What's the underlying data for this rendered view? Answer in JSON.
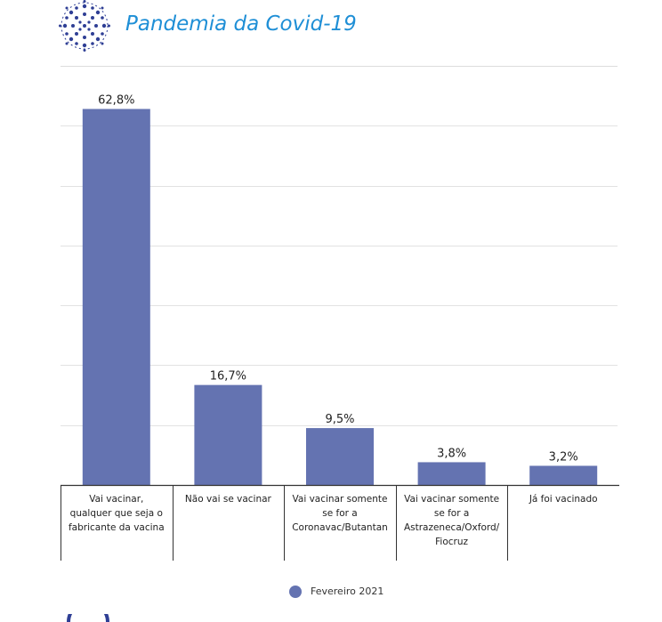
{
  "header": {
    "title": "Pandemia da Covid-19",
    "logo_icon": "virus-dots-icon",
    "accent_color": "#1f8fd6"
  },
  "chart_data": {
    "type": "bar",
    "categories": [
      [
        "Vai vacinar,",
        "qualquer que seja o",
        "fabricante da vacina"
      ],
      [
        "Não vai se vacinar"
      ],
      [
        "Vai vacinar somente",
        "se for a",
        "Coronavac/Butantan"
      ],
      [
        "Vai vacinar somente",
        "se for a",
        "Astrazeneca/Oxford/",
        "Fiocruz"
      ],
      [
        "Já foi vacinado"
      ]
    ],
    "series": [
      {
        "name": "Fevereiro 2021",
        "values": [
          62.8,
          16.7,
          9.5,
          3.8,
          3.2
        ],
        "labels": [
          "62,8%",
          "16,7%",
          "9,5%",
          "3,8%",
          "3,2%"
        ],
        "color": "#6473b1"
      }
    ],
    "ylim": [
      0,
      70
    ],
    "gridlines": true,
    "legend_position": "bottom-center"
  },
  "legend": {
    "label": "Fevereiro 2021"
  }
}
